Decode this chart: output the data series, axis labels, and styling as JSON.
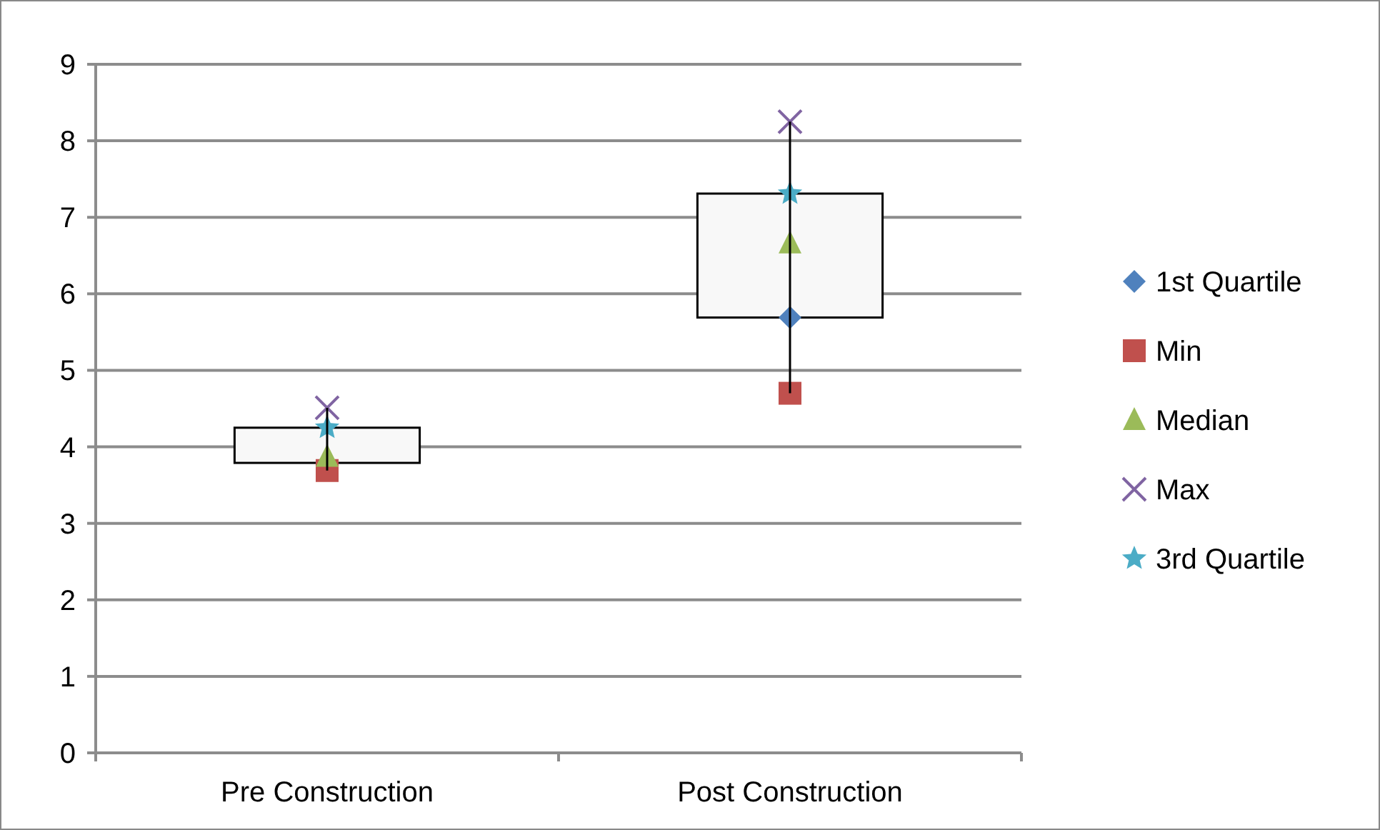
{
  "chart_data": {
    "type": "candlestick",
    "categories": [
      "Pre Construction",
      "Post Construction"
    ],
    "ohlc": [
      [
        3.79,
        4.51,
        3.69,
        4.25
      ],
      [
        5.69,
        8.25,
        4.7,
        7.31
      ]
    ],
    "ylim": [
      0,
      9
    ],
    "yticks": [
      0,
      1,
      2,
      3,
      4,
      5,
      6,
      7,
      8,
      9
    ],
    "grid": "y",
    "legend": "right",
    "series": [
      {
        "type": "scatter",
        "name": "1st Quartile",
        "color": "#4f81bd",
        "marker": "diamond",
        "values": [
          null,
          5.69
        ]
      },
      {
        "type": "scatter",
        "name": "Min",
        "color": "#c0504d",
        "marker": "square",
        "values": [
          3.69,
          4.7
        ]
      },
      {
        "type": "scatter",
        "name": "Median",
        "color": "#9bbb59",
        "marker": "triangle",
        "values": [
          3.87,
          6.66
        ]
      },
      {
        "type": "scatter",
        "name": "Max",
        "color": "#8064a2",
        "marker": "cross",
        "values": [
          4.51,
          8.25
        ]
      },
      {
        "type": "scatter",
        "name": "3rd Quartile",
        "color": "#4bacc6",
        "marker": "star",
        "values": [
          4.25,
          7.31
        ]
      }
    ]
  }
}
